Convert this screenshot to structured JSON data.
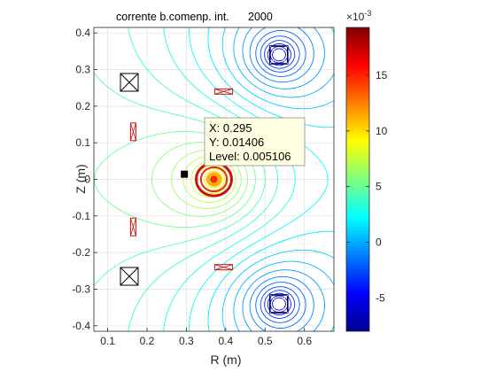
{
  "chart_data": {
    "type": "contour",
    "title": "corrente b.comenp. int.",
    "title_value": "2000",
    "xlabel": "R (m)",
    "ylabel": "Z (m)",
    "xlim": [
      0.065,
      0.675
    ],
    "ylim": [
      -0.415,
      0.415
    ],
    "x_ticks": [
      "0.1",
      "0.2",
      "0.3",
      "0.4",
      "0.5",
      "0.6"
    ],
    "x_tick_values": [
      0.1,
      0.2,
      0.3,
      0.4,
      0.5,
      0.6
    ],
    "y_ticks": [
      "-0.4",
      "-0.3",
      "-0.2",
      "-0.1",
      "0",
      "0.1",
      "0.2",
      "0.3",
      "0.4"
    ],
    "y_tick_values": [
      -0.4,
      -0.3,
      -0.2,
      -0.1,
      0,
      0.1,
      0.2,
      0.3,
      0.4
    ],
    "grid": true,
    "colorbar": {
      "colormap": "jet",
      "clim": [
        -8,
        19.3
      ],
      "tick_labels": [
        "-5",
        "0",
        "5",
        "10",
        "15"
      ],
      "tick_values": [
        -5,
        0,
        5,
        10,
        15
      ],
      "exponent_label": "×10",
      "exponent_power": "-3"
    },
    "sources": [
      {
        "name": "central-peak",
        "r": 0.37,
        "z": 0.0,
        "sign": 1
      },
      {
        "name": "coil-upper-right",
        "r": 0.535,
        "z": 0.34,
        "sign": -1
      },
      {
        "name": "coil-lower-right",
        "r": 0.535,
        "z": -0.34,
        "sign": -1
      }
    ],
    "coils_crossed": [
      {
        "r": 0.155,
        "z": 0.265
      },
      {
        "r": 0.155,
        "z": -0.265
      }
    ],
    "coils_red": [
      {
        "r": 0.165,
        "z": 0.13,
        "orient": "vertical"
      },
      {
        "r": 0.165,
        "z": -0.13,
        "orient": "vertical"
      },
      {
        "r": 0.395,
        "z": 0.24,
        "orient": "horizontal"
      },
      {
        "r": 0.395,
        "z": -0.24,
        "orient": "horizontal"
      }
    ],
    "datatip": {
      "x_text": "X: 0.295",
      "y_text": "Y: 0.01406",
      "level_text": "Level: 0.005106",
      "x": 0.295,
      "y": 0.01406
    }
  }
}
